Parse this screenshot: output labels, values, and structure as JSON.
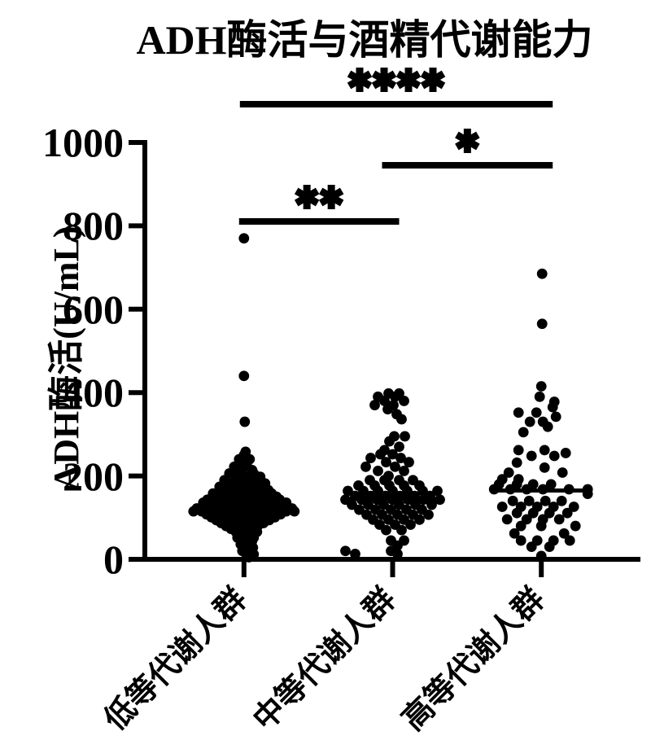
{
  "title": "ADH酶活与酒精代谢能力",
  "chart_data": {
    "type": "scatter",
    "subtype": "column-scatter-beeswarm",
    "title": "ADH酶活与酒精代谢能力",
    "xlabel": "",
    "ylabel": "ADH酶活(U/mL)",
    "ylim": [
      0,
      1000
    ],
    "yticks": [
      0,
      200,
      400,
      600,
      800,
      1000
    ],
    "grid": false,
    "legend": "none",
    "point_color": "#000000",
    "axis_color": "#000000",
    "background_color": "#ffffff",
    "categories": [
      "低等代谢人群",
      "中等代谢人群",
      "高等代谢人群"
    ],
    "groups": [
      {
        "name": "低等代谢人群",
        "median": 118,
        "rows": [
          {
            "v": 770,
            "dx": [
              0
            ]
          },
          {
            "v": 440,
            "dx": [
              0
            ]
          },
          {
            "v": 330,
            "dx": [
              1
            ]
          },
          {
            "v": 258,
            "dx": [
              2
            ]
          },
          {
            "v": 250,
            "dx": [
              0
            ]
          },
          {
            "v": 240,
            "dx": [
              -6,
              7
            ]
          },
          {
            "v": 231,
            "dx": [
              -2
            ]
          },
          {
            "v": 222,
            "dx": [
              -12,
              4
            ]
          },
          {
            "v": 214,
            "dx": [
              -5,
              10
            ]
          },
          {
            "v": 206,
            "dx": [
              -18,
              -3,
              12
            ]
          },
          {
            "v": 198,
            "dx": [
              -10,
              6,
              20
            ]
          },
          {
            "v": 190,
            "dx": [
              -24,
              -8,
              3,
              16
            ]
          },
          {
            "v": 182,
            "dx": [
              -15,
              0,
              10,
              26
            ]
          },
          {
            "v": 174,
            "dx": [
              -30,
              -18,
              -5,
              8,
              20
            ]
          },
          {
            "v": 166,
            "dx": [
              -25,
              -12,
              2,
              14,
              30
            ]
          },
          {
            "v": 158,
            "dx": [
              -38,
              -22,
              -8,
              5,
              18,
              34
            ]
          },
          {
            "v": 150,
            "dx": [
              -30,
              -16,
              -2,
              10,
              25,
              40
            ]
          },
          {
            "v": 143,
            "dx": [
              -45,
              -33,
              -20,
              -7,
              6,
              18,
              31,
              44
            ]
          },
          {
            "v": 136,
            "dx": [
              -50,
              -37,
              -24,
              -11,
              2,
              14,
              27,
              40,
              52
            ]
          },
          {
            "v": 129,
            "dx": [
              -44,
              -31,
              -18,
              -5,
              8,
              21,
              34,
              47
            ]
          },
          {
            "v": 122,
            "dx": [
              -58,
              -45,
              -32,
              -19,
              -6,
              7,
              20,
              33,
              46,
              59
            ]
          },
          {
            "v": 115,
            "dx": [
              -62,
              -52,
              -39,
              -26,
              -13,
              0,
              13,
              26,
              39,
              52,
              62
            ]
          },
          {
            "v": 108,
            "dx": [
              -46,
              -33,
              -20,
              -7,
              6,
              19,
              32,
              45
            ]
          },
          {
            "v": 101,
            "dx": [
              -40,
              -27,
              -14,
              -1,
              12,
              25,
              38
            ]
          },
          {
            "v": 94,
            "dx": [
              -34,
              -21,
              -8,
              5,
              18,
              31
            ]
          },
          {
            "v": 87,
            "dx": [
              -28,
              -15,
              -2,
              11,
              24
            ]
          },
          {
            "v": 80,
            "dx": [
              -22,
              -9,
              4,
              17
            ]
          },
          {
            "v": 73,
            "dx": [
              -16,
              -3,
              10
            ]
          },
          {
            "v": 66,
            "dx": [
              -10,
              3,
              16
            ]
          },
          {
            "v": 59,
            "dx": [
              -4,
              9
            ]
          },
          {
            "v": 52,
            "dx": [
              -8,
              3,
              12
            ]
          },
          {
            "v": 44,
            "dx": [
              0,
              10
            ]
          },
          {
            "v": 36,
            "dx": [
              -4,
              7
            ]
          },
          {
            "v": 28,
            "dx": [
              2,
              11
            ]
          },
          {
            "v": 20,
            "dx": [
              -2,
              8
            ]
          },
          {
            "v": 12,
            "dx": [
              3,
              12
            ]
          },
          {
            "v": 5,
            "dx": [
              6
            ]
          }
        ]
      },
      {
        "name": "中等代谢人群",
        "median": 145,
        "rows": [
          {
            "v": 398,
            "dx": [
              -5,
              8
            ]
          },
          {
            "v": 390,
            "dx": [
              -18,
              3
            ]
          },
          {
            "v": 380,
            "dx": [
              -10,
              14
            ]
          },
          {
            "v": 370,
            "dx": [
              -22,
              1
            ]
          },
          {
            "v": 360,
            "dx": [
              -6
            ]
          },
          {
            "v": 348,
            "dx": [
              5
            ]
          },
          {
            "v": 336,
            "dx": [
              11
            ]
          },
          {
            "v": 295,
            "dx": [
              2,
              15
            ]
          },
          {
            "v": 283,
            "dx": [
              -4
            ]
          },
          {
            "v": 270,
            "dx": [
              8
            ]
          },
          {
            "v": 262,
            "dx": [
              -10
            ]
          },
          {
            "v": 252,
            "dx": [
              -15,
              0
            ]
          },
          {
            "v": 243,
            "dx": [
              -27,
              10
            ]
          },
          {
            "v": 233,
            "dx": [
              -8,
              20
            ]
          },
          {
            "v": 222,
            "dx": [
              -33,
              3
            ]
          },
          {
            "v": 212,
            "dx": [
              -18,
              14
            ]
          },
          {
            "v": 200,
            "dx": [
              -5
            ]
          },
          {
            "v": 190,
            "dx": [
              -28,
              -10,
              8,
              25
            ]
          },
          {
            "v": 177,
            "dx": [
              -42,
              -22,
              -4,
              14,
              33
            ]
          },
          {
            "v": 164,
            "dx": [
              -55,
              -36,
              -18,
              0,
              18,
              37,
              55
            ]
          },
          {
            "v": 152,
            "dx": [
              -46,
              -27,
              -9,
              9,
              27,
              46
            ]
          },
          {
            "v": 143,
            "dx": [
              -58,
              -38,
              -19,
              0,
              19,
              38,
              58
            ]
          },
          {
            "v": 131,
            "dx": [
              -50,
              -30,
              -11,
              8,
              28,
              48
            ]
          },
          {
            "v": 119,
            "dx": [
              -41,
              -21,
              -2,
              17,
              36
            ]
          },
          {
            "v": 107,
            "dx": [
              -32,
              -13,
              6,
              25,
              44
            ]
          },
          {
            "v": 95,
            "dx": [
              -24,
              -5,
              14,
              33
            ]
          },
          {
            "v": 83,
            "dx": [
              -16,
              3,
              22
            ]
          },
          {
            "v": 70,
            "dx": [
              -8,
              11
            ]
          },
          {
            "v": 45,
            "dx": [
              -2,
              14
            ]
          },
          {
            "v": 33,
            "dx": [
              6
            ]
          },
          {
            "v": 20,
            "dx": [
              -58,
              -2
            ]
          },
          {
            "v": 13,
            "dx": [
              -46,
              6
            ]
          }
        ]
      },
      {
        "name": "高等代谢人群",
        "median": 165,
        "rows": [
          {
            "v": 685,
            "dx": [
              1
            ]
          },
          {
            "v": 565,
            "dx": [
              1
            ]
          },
          {
            "v": 415,
            "dx": [
              0
            ]
          },
          {
            "v": 390,
            "dx": [
              -2
            ]
          },
          {
            "v": 378,
            "dx": [
              16
            ]
          },
          {
            "v": 365,
            "dx": [
              14
            ]
          },
          {
            "v": 352,
            "dx": [
              -28,
              -6
            ]
          },
          {
            "v": 342,
            "dx": [
              18
            ]
          },
          {
            "v": 330,
            "dx": [
              -14,
              2
            ]
          },
          {
            "v": 318,
            "dx": [
              8
            ]
          },
          {
            "v": 305,
            "dx": [
              -22
            ]
          },
          {
            "v": 262,
            "dx": [
              -28,
              4
            ]
          },
          {
            "v": 255,
            "dx": [
              30
            ]
          },
          {
            "v": 248,
            "dx": [
              -12,
              16
            ]
          },
          {
            "v": 232,
            "dx": [
              -30
            ]
          },
          {
            "v": 220,
            "dx": [
              4
            ]
          },
          {
            "v": 208,
            "dx": [
              -40,
              26
            ]
          },
          {
            "v": 192,
            "dx": [
              -48,
              -28
            ]
          },
          {
            "v": 180,
            "dx": [
              -52,
              -30,
              -10,
              12
            ]
          },
          {
            "v": 168,
            "dx": [
              -58,
              -38,
              -18,
              2,
              34,
              57
            ]
          },
          {
            "v": 157,
            "dx": [
              57
            ]
          },
          {
            "v": 140,
            "dx": [
              -35,
              -15,
              5,
              25
            ]
          },
          {
            "v": 126,
            "dx": [
              -48,
              -25,
              -5,
              15,
              40
            ]
          },
          {
            "v": 111,
            "dx": [
              -30,
              -10,
              10,
              32
            ]
          },
          {
            "v": 96,
            "dx": [
              -42,
              -18,
              2,
              22
            ]
          },
          {
            "v": 80,
            "dx": [
              -25,
              0,
              42
            ]
          },
          {
            "v": 62,
            "dx": [
              -33,
              28
            ]
          },
          {
            "v": 45,
            "dx": [
              -25,
              -5,
              15,
              35
            ]
          },
          {
            "v": 30,
            "dx": [
              -12,
              10
            ]
          },
          {
            "v": 8,
            "dx": [
              0
            ]
          }
        ]
      }
    ],
    "significance": [
      {
        "between": [
          0,
          2
        ],
        "label": "****"
      },
      {
        "between": [
          1,
          2
        ],
        "label": "*"
      },
      {
        "between": [
          0,
          1
        ],
        "label": "**"
      }
    ]
  }
}
